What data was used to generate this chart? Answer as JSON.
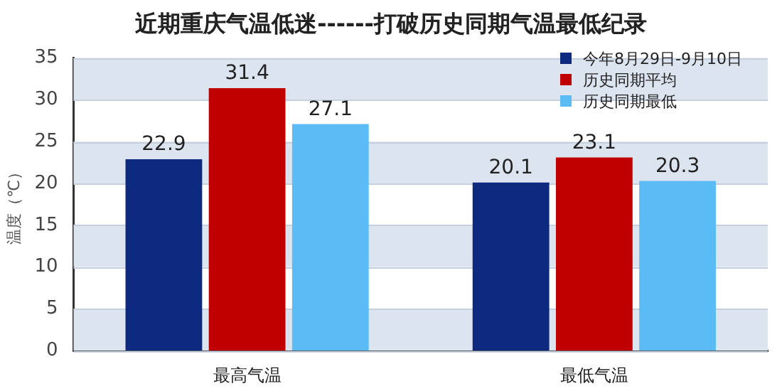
{
  "chart_data": {
    "type": "bar",
    "title": "近期重庆气温低迷------打破历史同期气温最低纪录",
    "ylabel": "温度（℃）",
    "categories": [
      "最高气温",
      "最低气温"
    ],
    "series": [
      {
        "name": "今年8月29日-9月10日",
        "color": "#0d2a80",
        "values": [
          22.9,
          20.1
        ]
      },
      {
        "name": "历史同期平均",
        "color": "#c00000",
        "values": [
          31.4,
          23.1
        ]
      },
      {
        "name": "历史同期最低",
        "color": "#5bbcf5",
        "values": [
          27.1,
          20.3
        ]
      }
    ],
    "ylim": [
      0,
      35
    ],
    "yticks": [
      0,
      5,
      10,
      15,
      20,
      25,
      30,
      35
    ],
    "grid": "y",
    "legend": "top right",
    "data_labels": true
  }
}
